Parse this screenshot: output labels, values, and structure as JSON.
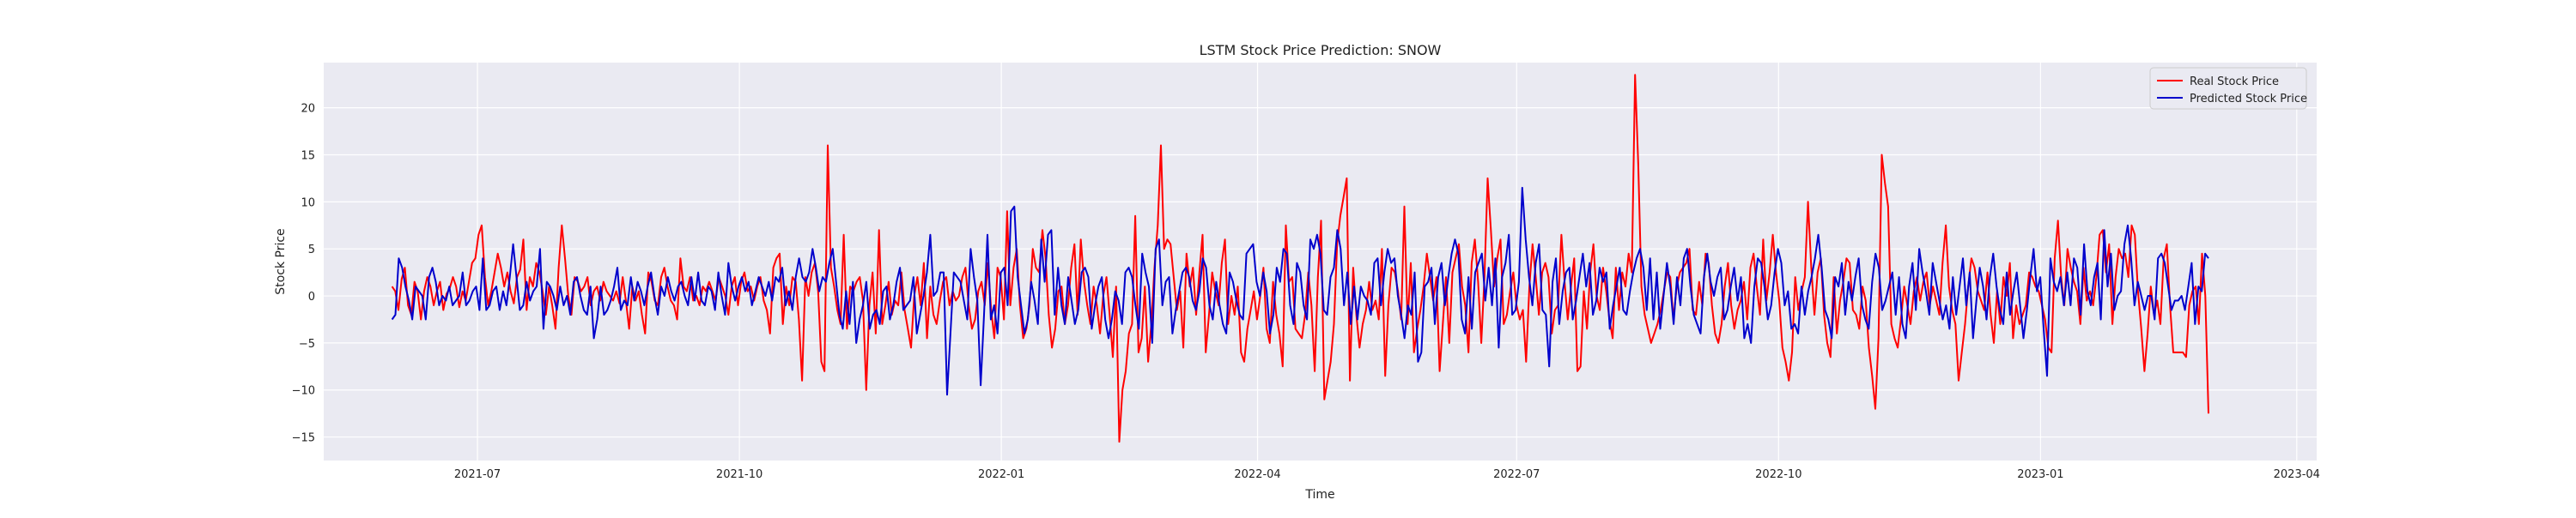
{
  "colors": {
    "plot_background": "#eaeaf2",
    "grid": "#ffffff",
    "real": "#ff0000",
    "predicted": "#0000cc"
  },
  "chart_data": {
    "type": "line",
    "title": "LSTM Stock Price Prediction: SNOW",
    "xlabel": "Time",
    "ylabel": "Stock Price",
    "xlim": [
      "2021-05-08",
      "2023-04-08"
    ],
    "ylim": [
      -17.5,
      24.8
    ],
    "x_ticks": [
      "2021-07-01",
      "2021-10-01",
      "2022-01-01",
      "2022-04-01",
      "2022-07-01",
      "2022-10-01",
      "2023-01-01",
      "2023-04-01"
    ],
    "x_tick_labels": [
      "2021-07",
      "2021-10",
      "2022-01",
      "2022-04",
      "2022-07",
      "2022-10",
      "2023-01",
      "2023-04"
    ],
    "y_ticks": [
      -15,
      -10,
      -5,
      0,
      5,
      10,
      15,
      20
    ],
    "y_tick_labels": [
      "−15",
      "−10",
      "−5",
      "0",
      "5",
      "10",
      "15",
      "20"
    ],
    "grid": true,
    "legend_position": "top-right",
    "x_start": "2021-06-01",
    "x_end": "2023-03-01",
    "series": [
      {
        "name": "Real Stock Price",
        "color": "#ff0000",
        "values": [
          1.0,
          0.5,
          -1.5,
          1.8,
          3.0,
          -1.0,
          -2.0,
          1.5,
          0.5,
          -2.5,
          0.5,
          2.0,
          1.0,
          -1.0,
          0.5,
          1.5,
          -1.5,
          0.2,
          0.8,
          2.0,
          1.0,
          -1.2,
          0.5,
          -0.5,
          1.5,
          3.5,
          4.0,
          6.5,
          7.5,
          2.0,
          -1.0,
          0.5,
          2.5,
          4.5,
          3.0,
          1.0,
          2.5,
          0.5,
          -0.8,
          2.0,
          2.8,
          6.0,
          -1.5,
          2.0,
          1.0,
          3.5,
          2.5,
          0.5,
          -2.0,
          1.0,
          -1.0,
          -3.5,
          3.0,
          7.5,
          4.0,
          0.0,
          -2.0,
          2.0,
          1.5,
          0.5,
          1.0,
          2.0,
          -1.0,
          0.5,
          1.0,
          -0.5,
          1.5,
          0.5,
          0.0,
          -0.5,
          0.5,
          -0.8,
          2.0,
          -0.5,
          -3.5,
          1.0,
          -0.5,
          0.5,
          -2.0,
          -4.0,
          2.5,
          1.5,
          -0.5,
          -1.0,
          2.0,
          3.0,
          1.0,
          -0.5,
          -1.0,
          -2.5,
          4.0,
          1.0,
          0.5,
          2.0,
          -0.5,
          0.0,
          -1.0,
          1.0,
          0.5,
          1.5,
          0.5,
          -0.5,
          2.0,
          1.0,
          0.0,
          -2.0,
          1.0,
          2.0,
          -1.0,
          1.5,
          2.5,
          0.5,
          1.0,
          -0.5,
          1.0,
          2.0,
          -0.5,
          -1.5,
          -4.0,
          3.0,
          4.0,
          4.5,
          -3.0,
          1.0,
          -1.0,
          2.0,
          1.5,
          -2.5,
          -9.0,
          2.0,
          0.0,
          2.5,
          3.5,
          0.5,
          -7.0,
          -8.0,
          16.0,
          3.0,
          1.0,
          -1.5,
          -3.0,
          6.5,
          -3.5,
          1.0,
          0.5,
          1.5,
          2.0,
          -0.5,
          -10.0,
          -1.0,
          2.5,
          -4.0,
          7.0,
          -3.0,
          -1.0,
          1.5,
          -2.0,
          -0.5,
          -1.0,
          2.5,
          -1.5,
          -3.5,
          -5.5,
          0.0,
          2.0,
          -1.0,
          3.5,
          -4.5,
          1.0,
          -2.0,
          -3.0,
          -0.5,
          1.5,
          2.0,
          -1.0,
          0.5,
          -0.5,
          0.0,
          2.0,
          3.0,
          -1.0,
          -3.5,
          -2.5,
          0.5,
          1.5,
          -1.0,
          3.5,
          -1.5,
          -4.5,
          3.0,
          2.0,
          -2.5,
          9.0,
          -1.0,
          3.0,
          5.0,
          -1.0,
          -4.5,
          -3.5,
          -1.0,
          5.0,
          3.0,
          2.5,
          7.0,
          4.0,
          -2.0,
          -5.5,
          -3.5,
          0.5,
          1.0,
          -3.0,
          -1.0,
          3.0,
          5.5,
          -2.0,
          6.0,
          1.5,
          -1.0,
          -3.0,
          1.0,
          -1.0,
          -4.0,
          0.0,
          2.0,
          -2.0,
          -6.5,
          1.0,
          -15.5,
          -10.0,
          -8.0,
          -4.0,
          -3.0,
          8.5,
          -6.0,
          -4.5,
          1.0,
          -7.0,
          -3.0,
          3.0,
          7.5,
          16.0,
          5.0,
          6.0,
          5.5,
          2.0,
          -1.5,
          0.5,
          -5.5,
          4.5,
          1.0,
          3.0,
          -2.0,
          2.5,
          6.5,
          -6.0,
          -2.0,
          2.5,
          0.5,
          -1.0,
          3.5,
          6.0,
          -3.0,
          0.0,
          -2.0,
          1.0,
          -6.0,
          -7.0,
          -3.5,
          -1.5,
          0.5,
          -2.5,
          0.0,
          3.0,
          -3.5,
          -5.0,
          1.5,
          -2.0,
          -4.0,
          -7.5,
          7.5,
          1.5,
          2.0,
          -3.5,
          -4.0,
          -4.5,
          -2.0,
          2.5,
          -1.0,
          -8.0,
          2.0,
          8.0,
          -11.0,
          -9.0,
          -7.0,
          -3.0,
          5.5,
          8.5,
          10.5,
          12.5,
          -9.0,
          3.0,
          -2.0,
          -5.5,
          -3.0,
          -1.5,
          1.5,
          -1.5,
          -0.5,
          -2.5,
          5.0,
          -8.5,
          -1.0,
          3.0,
          2.5,
          0.5,
          -2.5,
          9.5,
          -3.0,
          3.5,
          -6.0,
          -3.5,
          -1.5,
          1.0,
          4.5,
          2.0,
          -0.5,
          2.0,
          -8.0,
          -3.0,
          2.0,
          -5.0,
          2.5,
          4.0,
          5.5,
          1.0,
          -1.0,
          -6.0,
          3.5,
          6.0,
          1.5,
          -5.0,
          2.0,
          12.5,
          7.0,
          1.0,
          4.0,
          6.0,
          -3.0,
          -2.0,
          0.5,
          2.5,
          -1.0,
          -2.5,
          -1.5,
          -7.0,
          1.0,
          5.5,
          2.0,
          -2.0,
          2.5,
          3.5,
          2.0,
          -4.0,
          -1.5,
          -1.0,
          6.5,
          1.5,
          -2.5,
          1.0,
          4.0,
          -8.0,
          -7.5,
          0.5,
          -3.5,
          2.5,
          5.5,
          0.0,
          -1.5,
          3.0,
          0.5,
          -2.5,
          -4.5,
          3.0,
          -1.5,
          2.5,
          1.0,
          4.5,
          2.5,
          23.5,
          14.0,
          1.0,
          -2.0,
          -3.5,
          -5.0,
          -4.0,
          -3.0,
          -1.5,
          0.5,
          2.5,
          2.0,
          -2.5,
          1.0,
          2.5,
          3.0,
          3.5,
          5.0,
          -1.5,
          -2.0,
          1.5,
          -1.0,
          4.5,
          3.5,
          -1.0,
          -4.0,
          -5.0,
          -3.0,
          1.0,
          3.5,
          -1.0,
          -3.5,
          -1.5,
          -0.5,
          1.5,
          -2.5,
          3.0,
          4.5,
          1.0,
          -2.0,
          6.0,
          -0.5,
          2.5,
          6.5,
          2.5,
          -0.5,
          -5.5,
          -7.0,
          -9.0,
          -6.0,
          2.0,
          -1.5,
          0.5,
          2.0,
          10.0,
          3.0,
          -2.0,
          2.5,
          4.0,
          -2.0,
          -5.0,
          -6.5,
          2.0,
          -4.0,
          -0.5,
          1.5,
          4.0,
          3.5,
          -1.5,
          -2.0,
          -3.5,
          1.0,
          -0.5,
          -5.5,
          -8.5,
          -12.0,
          -4.5,
          15.0,
          12.0,
          9.5,
          -3.0,
          -4.5,
          -5.5,
          -2.5,
          1.0,
          -1.0,
          -3.0,
          0.5,
          2.0,
          -0.5,
          1.5,
          2.5,
          -1.0,
          1.0,
          -0.5,
          -2.0,
          3.5,
          7.5,
          1.0,
          -1.5,
          -3.0,
          -9.0,
          -6.0,
          -3.0,
          1.0,
          4.0,
          3.0,
          0.5,
          -0.5,
          -1.5,
          2.5,
          -2.0,
          -5.0,
          0.5,
          -3.0,
          2.0,
          0.0,
          3.5,
          -4.5,
          -1.0,
          -3.0,
          -2.0,
          -1.0,
          2.5,
          2.0,
          1.0,
          0.5,
          -1.0,
          -2.5,
          -5.5,
          -6.0,
          4.0,
          8.0,
          2.0,
          -1.0,
          5.0,
          3.0,
          1.5,
          0.5,
          -3.0,
          3.0,
          -0.5,
          0.5,
          -1.0,
          2.0,
          6.5,
          7.0,
          2.5,
          5.5,
          -3.0,
          2.0,
          5.0,
          4.0,
          4.5,
          2.0,
          7.5,
          6.5,
          0.5,
          -3.5,
          -8.0,
          -4.0,
          1.0,
          -2.0,
          -0.5,
          -3.0,
          4.0,
          5.5,
          -1.0,
          -6.0,
          -6.0,
          -6.0,
          -6.0,
          -6.5,
          -1.0,
          0.5,
          1.0,
          -3.0,
          4.5,
          0.0,
          -12.5
        ]
      },
      {
        "name": "Predicted Stock Price",
        "color": "#0000cc",
        "values": [
          -2.5,
          -2.0,
          4.0,
          3.0,
          1.0,
          -0.5,
          -2.5,
          1.0,
          0.5,
          0.0,
          -2.5,
          2.0,
          3.0,
          1.5,
          -1.0,
          0.0,
          -0.5,
          1.0,
          -1.0,
          -0.5,
          0.0,
          2.5,
          -1.0,
          -0.5,
          0.5,
          1.0,
          -1.5,
          4.0,
          -1.5,
          -1.0,
          0.5,
          1.0,
          -1.5,
          0.5,
          -1.0,
          2.0,
          5.5,
          2.0,
          -1.5,
          -1.0,
          1.5,
          -0.5,
          0.5,
          1.0,
          5.0,
          -3.5,
          1.5,
          1.0,
          0.0,
          -1.5,
          1.0,
          -1.0,
          0.0,
          -2.0,
          1.5,
          2.0,
          0.0,
          -1.5,
          -2.0,
          1.0,
          -4.5,
          -2.5,
          1.0,
          -2.0,
          -1.5,
          -0.5,
          1.0,
          3.0,
          -1.5,
          -0.5,
          -1.0,
          2.0,
          -0.5,
          1.5,
          0.5,
          -1.0,
          1.0,
          2.5,
          0.0,
          -2.0,
          1.0,
          0.0,
          2.0,
          0.5,
          -0.5,
          1.0,
          1.5,
          0.0,
          -1.0,
          2.0,
          -0.5,
          2.5,
          -0.5,
          -1.0,
          1.0,
          0.5,
          -1.5,
          2.5,
          0.0,
          -2.0,
          3.5,
          1.0,
          -0.5,
          1.0,
          2.0,
          0.5,
          1.5,
          -1.0,
          0.5,
          2.0,
          1.0,
          0.0,
          1.5,
          -0.5,
          2.0,
          1.5,
          3.0,
          -1.0,
          0.5,
          -1.5,
          2.0,
          4.0,
          2.0,
          1.5,
          2.5,
          5.0,
          3.0,
          0.5,
          2.0,
          1.5,
          3.5,
          5.0,
          1.5,
          -2.0,
          -3.5,
          0.5,
          -3.0,
          1.5,
          -5.0,
          -2.5,
          -1.0,
          1.5,
          -3.5,
          -2.0,
          -1.5,
          -3.0,
          0.5,
          1.0,
          -2.5,
          -1.0,
          1.5,
          3.0,
          -1.5,
          -1.0,
          -0.5,
          2.0,
          -4.0,
          -2.0,
          0.0,
          2.5,
          6.5,
          0.0,
          0.5,
          2.5,
          2.5,
          -10.5,
          -4.0,
          2.5,
          2.0,
          1.5,
          -0.5,
          -2.5,
          5.0,
          2.0,
          -0.5,
          -9.5,
          -2.0,
          6.5,
          -2.5,
          -1.0,
          -4.0,
          2.5,
          3.0,
          -1.0,
          9.0,
          9.5,
          2.0,
          -1.0,
          -4.0,
          -2.5,
          1.5,
          -0.5,
          -3.0,
          6.0,
          1.5,
          6.5,
          7.0,
          -2.0,
          3.0,
          -1.0,
          -3.0,
          2.0,
          -0.5,
          -3.0,
          -1.5,
          2.5,
          3.0,
          2.0,
          -3.5,
          -1.0,
          1.0,
          2.0,
          -2.5,
          -4.5,
          -2.5,
          0.5,
          -0.5,
          -3.0,
          2.5,
          3.0,
          2.0,
          -1.0,
          -3.5,
          4.5,
          2.5,
          1.0,
          -5.0,
          5.0,
          6.0,
          -1.0,
          1.5,
          2.0,
          -4.0,
          -1.5,
          0.5,
          2.5,
          3.0,
          2.0,
          -0.5,
          -1.5,
          0.5,
          4.0,
          3.0,
          -1.0,
          -2.5,
          1.5,
          -1.0,
          -3.0,
          -4.0,
          2.5,
          1.5,
          -0.5,
          -2.0,
          -2.5,
          4.5,
          5.0,
          5.5,
          1.5,
          0.0,
          2.5,
          0.5,
          -4.0,
          -2.0,
          3.0,
          1.5,
          5.0,
          4.5,
          -1.0,
          -3.0,
          3.5,
          2.5,
          -1.0,
          -2.5,
          6.0,
          5.0,
          6.5,
          4.5,
          -1.5,
          -2.0,
          2.0,
          3.0,
          7.0,
          5.0,
          -1.0,
          2.5,
          -3.0,
          1.0,
          -2.5,
          1.0,
          0.0,
          -0.5,
          -2.0,
          3.5,
          4.0,
          -1.0,
          2.5,
          5.0,
          3.5,
          4.0,
          0.0,
          -2.0,
          -4.5,
          -1.0,
          -2.0,
          2.5,
          -7.0,
          -6.0,
          1.0,
          1.5,
          3.0,
          -3.0,
          2.0,
          3.5,
          -1.0,
          2.0,
          4.5,
          6.0,
          4.5,
          -2.5,
          -4.0,
          2.0,
          -3.5,
          2.5,
          3.5,
          4.5,
          -0.5,
          3.0,
          -1.0,
          4.0,
          -5.5,
          2.0,
          3.5,
          6.5,
          -2.0,
          -1.5,
          1.5,
          11.5,
          6.0,
          2.0,
          -1.0,
          3.5,
          5.5,
          -1.5,
          -2.0,
          -7.5,
          1.5,
          4.0,
          -3.0,
          0.5,
          2.5,
          3.0,
          -2.5,
          -0.5,
          2.0,
          4.5,
          1.0,
          3.5,
          -2.0,
          -0.5,
          3.0,
          1.5,
          2.5,
          -3.5,
          -1.0,
          1.0,
          3.0,
          -1.5,
          -2.0,
          0.5,
          2.5,
          4.0,
          5.0,
          3.0,
          -1.5,
          4.0,
          -2.5,
          2.5,
          -3.5,
          0.0,
          3.5,
          1.0,
          -3.0,
          2.0,
          -1.0,
          4.0,
          5.0,
          1.0,
          -2.0,
          -3.0,
          -4.0,
          2.0,
          4.5,
          1.5,
          0.0,
          2.0,
          3.0,
          -2.5,
          -1.5,
          1.0,
          3.0,
          -0.5,
          2.0,
          -4.5,
          -3.0,
          -5.0,
          1.0,
          4.0,
          3.5,
          1.0,
          -2.5,
          -1.0,
          2.5,
          5.0,
          3.5,
          -1.0,
          0.5,
          -3.5,
          -3.0,
          -4.0,
          1.0,
          -2.0,
          0.5,
          2.0,
          4.0,
          6.5,
          3.0,
          -1.5,
          -2.5,
          -4.5,
          2.0,
          1.0,
          3.5,
          -2.0,
          1.5,
          -0.5,
          2.0,
          4.0,
          -1.0,
          -2.5,
          -3.5,
          1.5,
          4.5,
          3.0,
          -1.5,
          -0.5,
          1.0,
          2.5,
          -2.0,
          2.0,
          -3.0,
          -4.5,
          1.0,
          3.5,
          -1.5,
          5.0,
          2.5,
          0.5,
          -2.0,
          3.5,
          1.5,
          -0.5,
          -2.5,
          -1.0,
          -3.5,
          2.0,
          -2.0,
          1.0,
          4.0,
          -1.0,
          2.5,
          -4.5,
          -0.5,
          3.0,
          1.0,
          -2.5,
          2.0,
          4.5,
          1.0,
          -1.5,
          -3.0,
          2.5,
          -2.0,
          0.5,
          2.5,
          -1.0,
          -4.5,
          -1.5,
          2.0,
          5.0,
          0.5,
          2.0,
          -3.5,
          -8.5,
          4.0,
          1.5,
          0.5,
          2.0,
          -1.0,
          2.5,
          -1.0,
          4.0,
          3.0,
          -2.0,
          5.5,
          0.5,
          -1.0,
          2.0,
          3.5,
          -2.5,
          7.0,
          1.0,
          4.5,
          -1.5,
          0.0,
          0.5,
          5.5,
          7.5,
          4.0,
          -1.0,
          1.5,
          0.0,
          -1.5,
          0.0,
          0.0,
          -2.5,
          4.0,
          4.5,
          3.5,
          1.0,
          -1.5,
          -0.5,
          -0.5,
          0.0,
          -1.5,
          1.0,
          3.5,
          -3.0,
          1.0,
          0.5,
          4.5,
          4.0
        ]
      }
    ]
  }
}
